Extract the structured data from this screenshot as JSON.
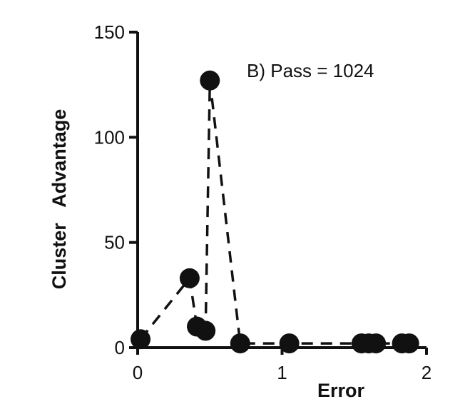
{
  "colors": {
    "ink": "#111111",
    "background": "#ffffff"
  },
  "chart_data": {
    "type": "scatter",
    "annotation": "B) Pass = 1024",
    "xlabel": "Error",
    "ylabel": "Cluster   Advantage",
    "xlim": [
      0,
      2
    ],
    "ylim": [
      0,
      150
    ],
    "xticks": [
      0,
      1,
      2
    ],
    "yticks": [
      0,
      50,
      100,
      150
    ],
    "grid": false,
    "legend": "none",
    "line_style": "dashed",
    "series": [
      {
        "points": [
          {
            "x": 0.02,
            "y": 4
          },
          {
            "x": 0.36,
            "y": 33
          },
          {
            "x": 0.41,
            "y": 10
          },
          {
            "x": 0.47,
            "y": 8
          },
          {
            "x": 0.5,
            "y": 127
          },
          {
            "x": 0.71,
            "y": 2
          },
          {
            "x": 1.05,
            "y": 2
          },
          {
            "x": 1.55,
            "y": 2
          },
          {
            "x": 1.6,
            "y": 2
          },
          {
            "x": 1.65,
            "y": 2
          },
          {
            "x": 1.83,
            "y": 2
          },
          {
            "x": 1.88,
            "y": 2
          }
        ]
      }
    ]
  }
}
